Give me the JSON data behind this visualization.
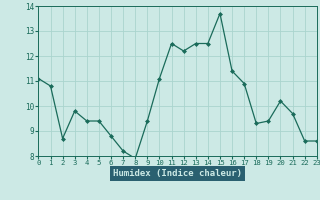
{
  "x": [
    0,
    1,
    2,
    3,
    4,
    5,
    6,
    7,
    8,
    9,
    10,
    11,
    12,
    13,
    14,
    15,
    16,
    17,
    18,
    19,
    20,
    21,
    22,
    23
  ],
  "y": [
    11.1,
    10.8,
    8.7,
    9.8,
    9.4,
    9.4,
    8.8,
    8.2,
    7.9,
    9.4,
    11.1,
    12.5,
    12.2,
    12.5,
    12.5,
    13.7,
    11.4,
    10.9,
    9.3,
    9.4,
    10.2,
    9.7,
    8.6,
    8.6
  ],
  "xlabel": "Humidex (Indice chaleur)",
  "ylim": [
    8,
    14
  ],
  "xlim": [
    0,
    23
  ],
  "yticks": [
    8,
    9,
    10,
    11,
    12,
    13,
    14
  ],
  "xticks": [
    0,
    1,
    2,
    3,
    4,
    5,
    6,
    7,
    8,
    9,
    10,
    11,
    12,
    13,
    14,
    15,
    16,
    17,
    18,
    19,
    20,
    21,
    22,
    23
  ],
  "line_color": "#1a6b5a",
  "marker_color": "#1a6b5a",
  "bg_color": "#cce9e5",
  "grid_color": "#aad4ce",
  "xlabel_bg": "#2a6070",
  "xlabel_fg": "#cce9e5"
}
